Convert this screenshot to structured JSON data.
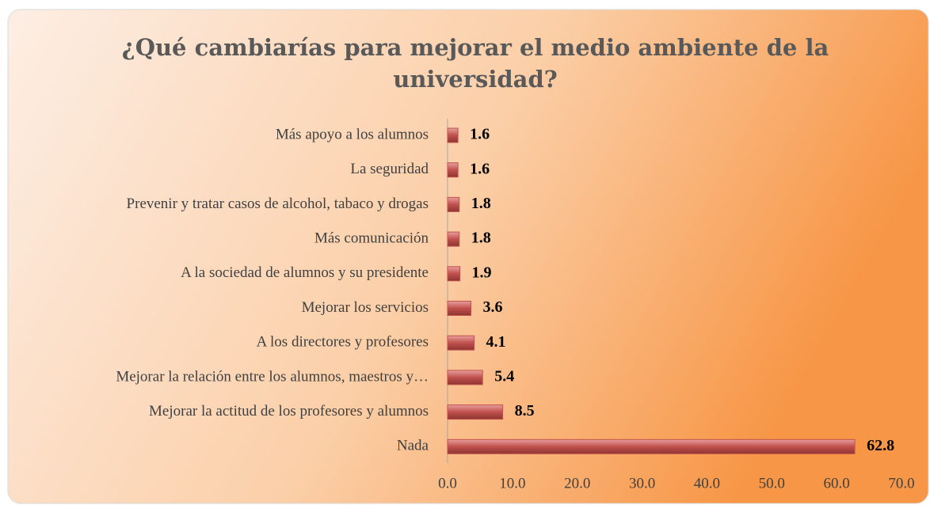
{
  "chart_data": {
    "type": "bar",
    "orientation": "horizontal",
    "title": "¿Qué cambiarías para mejorar el medio ambiente de la universidad?",
    "categories": [
      "Más apoyo a los alumnos",
      "La seguridad",
      "Prevenir y tratar casos de alcohol, tabaco y drogas",
      "Más comunicación",
      "A la sociedad de alumnos y su presidente",
      "Mejorar los servicios",
      "A los directores y profesores",
      "Mejorar la relación entre los alumnos, maestros y…",
      "Mejorar la actitud de los profesores y alumnos",
      "Nada"
    ],
    "values": [
      1.6,
      1.6,
      1.8,
      1.8,
      1.9,
      3.6,
      4.1,
      5.4,
      8.5,
      62.8
    ],
    "color": "#c0504d",
    "xlim": [
      0,
      70
    ],
    "xticks": [
      {
        "value": 0,
        "label": "0.0"
      },
      {
        "value": 10,
        "label": "10.0"
      },
      {
        "value": 20,
        "label": "20.0"
      },
      {
        "value": 30,
        "label": "30.0"
      },
      {
        "value": 40,
        "label": "40.0"
      },
      {
        "value": 50,
        "label": "50.0"
      },
      {
        "value": 60,
        "label": "60.0"
      },
      {
        "value": 70,
        "label": "70.0"
      }
    ],
    "grid": false
  }
}
